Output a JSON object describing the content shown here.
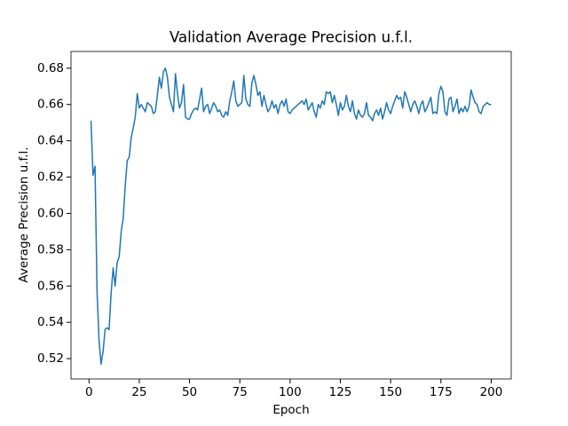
{
  "chart_data": {
    "type": "line",
    "title": "Validation Average Precision u.f.l.",
    "x_label": "Epoch",
    "y_label": "Average Precision u.f.l.",
    "x": [
      1,
      2,
      3,
      4,
      5,
      6,
      7,
      8,
      9,
      10,
      11,
      12,
      13,
      14,
      15,
      16,
      17,
      18,
      19,
      20,
      21,
      22,
      23,
      24,
      25,
      26,
      27,
      28,
      29,
      30,
      31,
      32,
      33,
      34,
      35,
      36,
      37,
      38,
      39,
      40,
      41,
      42,
      43,
      44,
      45,
      46,
      47,
      48,
      49,
      50,
      51,
      52,
      53,
      54,
      55,
      56,
      57,
      58,
      59,
      60,
      61,
      62,
      63,
      64,
      65,
      66,
      67,
      68,
      69,
      70,
      71,
      72,
      73,
      74,
      75,
      76,
      77,
      78,
      79,
      80,
      81,
      82,
      83,
      84,
      85,
      86,
      87,
      88,
      89,
      90,
      91,
      92,
      93,
      94,
      95,
      96,
      97,
      98,
      99,
      100,
      101,
      102,
      103,
      104,
      105,
      106,
      107,
      108,
      109,
      110,
      111,
      112,
      113,
      114,
      115,
      116,
      117,
      118,
      119,
      120,
      121,
      122,
      123,
      124,
      125,
      126,
      127,
      128,
      129,
      130,
      131,
      132,
      133,
      134,
      135,
      136,
      137,
      138,
      139,
      140,
      141,
      142,
      143,
      144,
      145,
      146,
      147,
      148,
      149,
      150,
      151,
      152,
      153,
      154,
      155,
      156,
      157,
      158,
      159,
      160,
      161,
      162,
      163,
      164,
      165,
      166,
      167,
      168,
      169,
      170,
      171,
      172,
      173,
      174,
      175,
      176,
      177,
      178,
      179,
      180,
      181,
      182,
      183,
      184,
      185,
      186,
      187,
      188,
      189,
      190,
      191,
      192,
      193,
      194,
      195,
      196,
      197,
      198,
      199,
      200
    ],
    "series": [
      {
        "color": "#1f77b4",
        "values": [
          0.651,
          0.621,
          0.626,
          0.557,
          0.53,
          0.517,
          0.524,
          0.536,
          0.537,
          0.536,
          0.556,
          0.57,
          0.56,
          0.573,
          0.576,
          0.59,
          0.597,
          0.615,
          0.629,
          0.631,
          0.642,
          0.647,
          0.653,
          0.666,
          0.658,
          0.66,
          0.658,
          0.656,
          0.661,
          0.66,
          0.659,
          0.655,
          0.656,
          0.665,
          0.675,
          0.669,
          0.678,
          0.68,
          0.675,
          0.664,
          0.66,
          0.656,
          0.677,
          0.666,
          0.658,
          0.661,
          0.671,
          0.653,
          0.652,
          0.652,
          0.655,
          0.657,
          0.658,
          0.657,
          0.663,
          0.669,
          0.656,
          0.659,
          0.66,
          0.655,
          0.658,
          0.661,
          0.659,
          0.656,
          0.657,
          0.654,
          0.653,
          0.656,
          0.654,
          0.662,
          0.667,
          0.673,
          0.662,
          0.659,
          0.66,
          0.661,
          0.676,
          0.663,
          0.66,
          0.659,
          0.672,
          0.676,
          0.671,
          0.665,
          0.667,
          0.659,
          0.665,
          0.66,
          0.656,
          0.658,
          0.662,
          0.658,
          0.66,
          0.655,
          0.66,
          0.662,
          0.659,
          0.663,
          0.656,
          0.655,
          0.657,
          0.658,
          0.659,
          0.66,
          0.661,
          0.662,
          0.66,
          0.663,
          0.657,
          0.659,
          0.661,
          0.656,
          0.653,
          0.66,
          0.658,
          0.662,
          0.66,
          0.667,
          0.666,
          0.667,
          0.661,
          0.665,
          0.66,
          0.654,
          0.661,
          0.657,
          0.659,
          0.665,
          0.659,
          0.656,
          0.662,
          0.655,
          0.652,
          0.657,
          0.654,
          0.653,
          0.655,
          0.661,
          0.654,
          0.653,
          0.651,
          0.655,
          0.657,
          0.654,
          0.658,
          0.652,
          0.656,
          0.661,
          0.657,
          0.655,
          0.659,
          0.662,
          0.665,
          0.663,
          0.664,
          0.658,
          0.667,
          0.664,
          0.66,
          0.656,
          0.66,
          0.662,
          0.659,
          0.655,
          0.66,
          0.662,
          0.656,
          0.658,
          0.661,
          0.664,
          0.655,
          0.656,
          0.655,
          0.666,
          0.67,
          0.667,
          0.656,
          0.654,
          0.663,
          0.664,
          0.656,
          0.659,
          0.663,
          0.655,
          0.658,
          0.656,
          0.659,
          0.656,
          0.659,
          0.668,
          0.664,
          0.661,
          0.66,
          0.656,
          0.655,
          0.659,
          0.66,
          0.661,
          0.66,
          0.66
        ]
      }
    ],
    "xlim": [
      -8.95,
      209.95
    ],
    "xticks": [
      0,
      25,
      50,
      75,
      100,
      125,
      150,
      175,
      200
    ],
    "ylim": [
      0.5088,
      0.6892
    ],
    "yticks": [
      0.52,
      0.54,
      0.56,
      0.58,
      {
        "value": 0.6,
        "label": "0.60"
      },
      0.62,
      0.64,
      0.66,
      0.68
    ],
    "grid": false
  }
}
